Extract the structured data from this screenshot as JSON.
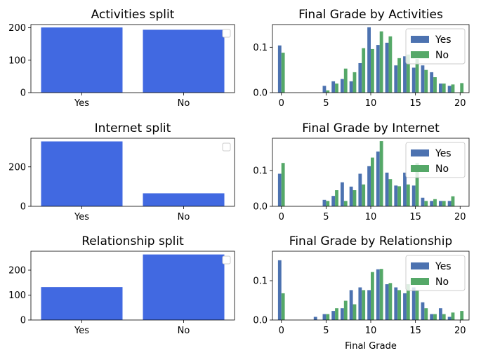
{
  "colors": {
    "split_bar": "#4169e1",
    "yes": "#4c72b0",
    "no": "#55a868"
  },
  "chart_data": [
    {
      "type": "bar",
      "panel": "left-top",
      "title": "Activities split",
      "categories": [
        "Yes",
        "No"
      ],
      "values": [
        201,
        194
      ],
      "ylim": [
        0,
        210
      ],
      "yticks": [
        0,
        100,
        200
      ],
      "legend": "top-right",
      "legend_entries": []
    },
    {
      "type": "bar",
      "panel": "right-top",
      "title": "Final Grade by Activities",
      "x": [
        0,
        1,
        2,
        3,
        4,
        5,
        6,
        7,
        8,
        9,
        10,
        11,
        12,
        13,
        14,
        15,
        16,
        17,
        18,
        19,
        20
      ],
      "series": [
        {
          "name": "Yes",
          "values": [
            0.104,
            0,
            0,
            0,
            0,
            0.015,
            0.025,
            0.03,
            0.025,
            0.065,
            0.144,
            0.105,
            0.11,
            0.06,
            0.08,
            0.055,
            0.06,
            0.045,
            0.02,
            0.015,
            0
          ]
        },
        {
          "name": "No",
          "values": [
            0.088,
            0,
            0,
            0,
            0,
            0.005,
            0.02,
            0.053,
            0.045,
            0.098,
            0.096,
            0.135,
            0.124,
            0.076,
            0.084,
            0.074,
            0.05,
            0.034,
            0.02,
            0.018,
            0.021
          ]
        }
      ],
      "ylim": [
        0,
        0.15
      ],
      "yticks": [
        0.0,
        0.1
      ],
      "xticks": [
        0,
        5,
        10,
        15,
        20
      ],
      "xlabel": "",
      "legend": "top-right",
      "legend_entries": [
        "Yes",
        "No"
      ]
    },
    {
      "type": "bar",
      "panel": "left-middle",
      "title": "Internet split",
      "categories": [
        "Yes",
        "No"
      ],
      "values": [
        329,
        66
      ],
      "ylim": [
        0,
        345
      ],
      "yticks": [
        0,
        200
      ],
      "legend": "top-right",
      "legend_entries": []
    },
    {
      "type": "bar",
      "panel": "right-middle",
      "title": "Final Grade by Internet",
      "x": [
        0,
        1,
        2,
        3,
        4,
        5,
        6,
        7,
        8,
        9,
        10,
        11,
        12,
        13,
        14,
        15,
        16,
        17,
        18,
        19,
        20
      ],
      "series": [
        {
          "name": "Yes",
          "values": [
            0.091,
            0,
            0,
            0,
            0,
            0.018,
            0.029,
            0.067,
            0.055,
            0.091,
            0.112,
            0.153,
            0.094,
            0.058,
            0.094,
            0.058,
            0.024,
            0.015,
            0.015,
            0.015,
            0
          ]
        },
        {
          "name": "No",
          "values": [
            0.121,
            0,
            0,
            0,
            0,
            0.015,
            0.045,
            0.015,
            0.045,
            0.061,
            0.136,
            0.182,
            0.076,
            0.056,
            0.061,
            0.121,
            0.015,
            0.02,
            0.015,
            0.028,
            0
          ]
        }
      ],
      "ylim": [
        0,
        0.19
      ],
      "yticks": [
        0.0,
        0.1
      ],
      "xticks": [
        0,
        5,
        10,
        15,
        20
      ],
      "xlabel": "",
      "legend": "top-right",
      "legend_entries": [
        "Yes",
        "No"
      ]
    },
    {
      "type": "bar",
      "panel": "left-bottom",
      "title": "Relationship split",
      "categories": [
        "Yes",
        "No"
      ],
      "values": [
        132,
        263
      ],
      "ylim": [
        0,
        276
      ],
      "yticks": [
        0,
        100,
        200
      ],
      "legend": "top-right",
      "legend_entries": []
    },
    {
      "type": "bar",
      "panel": "right-bottom",
      "title": "Final Grade by Relationship",
      "x": [
        0,
        1,
        2,
        3,
        4,
        5,
        6,
        7,
        8,
        9,
        10,
        11,
        12,
        13,
        14,
        15,
        16,
        17,
        18,
        19,
        20
      ],
      "series": [
        {
          "name": "Yes",
          "values": [
            0.152,
            0,
            0,
            0,
            0.008,
            0.015,
            0.023,
            0.03,
            0.076,
            0.083,
            0.076,
            0.129,
            0.091,
            0.083,
            0.068,
            0.083,
            0.045,
            0.015,
            0.03,
            0.008,
            0
          ]
        },
        {
          "name": "No",
          "values": [
            0.068,
            0,
            0,
            0,
            0,
            0.015,
            0.03,
            0.049,
            0.04,
            0.076,
            0.122,
            0.13,
            0.094,
            0.076,
            0.091,
            0.076,
            0.03,
            0.015,
            0.015,
            0.019,
            0.023
          ]
        }
      ],
      "ylim": [
        0,
        0.175
      ],
      "yticks": [
        0.0,
        0.1
      ],
      "xticks": [
        0,
        5,
        10,
        15,
        20
      ],
      "xlabel": "Final Grade",
      "legend": "top-right",
      "legend_entries": [
        "Yes",
        "No"
      ]
    }
  ]
}
